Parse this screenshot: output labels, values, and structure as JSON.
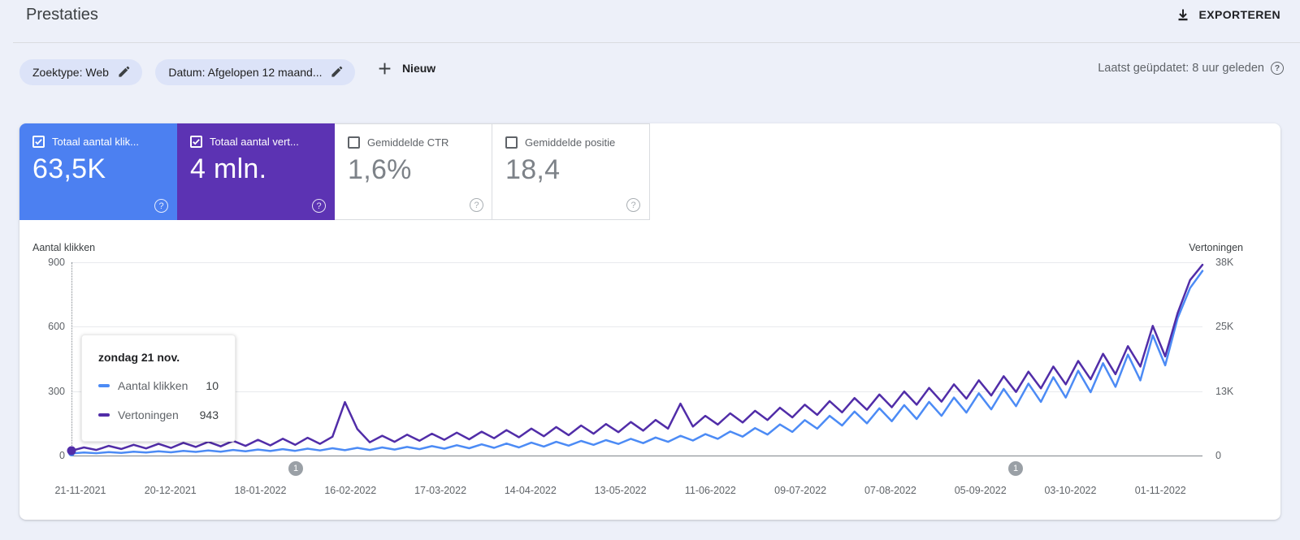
{
  "header": {
    "title": "Prestaties",
    "export_label": "EXPORTEREN"
  },
  "filters": {
    "search_type_chip": "Zoektype: Web",
    "date_chip": "Datum: Afgelopen 12 maand...",
    "new_label": "Nieuw",
    "last_updated": "Laatst geüpdatet: 8 uur geleden"
  },
  "metrics": [
    {
      "label": "Totaal aantal klik...",
      "value": "63,5K",
      "selected": true,
      "color": "#4c80f1"
    },
    {
      "label": "Totaal aantal vert...",
      "value": "4 mln.",
      "selected": true,
      "color": "#5c33b3"
    },
    {
      "label": "Gemiddelde CTR",
      "value": "1,6%",
      "selected": false
    },
    {
      "label": "Gemiddelde positie",
      "value": "18,4",
      "selected": false
    }
  ],
  "tooltip": {
    "title": "zondag 21 nov.",
    "rows": [
      {
        "label": "Aantal klikken",
        "value": "10",
        "color": "#4c8bf5"
      },
      {
        "label": "Vertoningen",
        "value": "943",
        "color": "#512da8"
      }
    ]
  },
  "chart_data": {
    "type": "line",
    "title": "Prestaties - Aantal klikken / Vertoningen (afgelopen 12 maanden)",
    "grid": true,
    "left_axis": {
      "label": "Aantal klikken",
      "ticks": [
        "900",
        "600",
        "300",
        "0"
      ],
      "max": 900
    },
    "right_axis": {
      "label": "Vertoningen",
      "ticks": [
        "38K",
        "25K",
        "13K",
        "0"
      ],
      "max": 38000
    },
    "x_labels": [
      "21-11-2021",
      "20-12-2021",
      "18-01-2022",
      "16-02-2022",
      "17-03-2022",
      "14-04-2022",
      "13-05-2022",
      "11-06-2022",
      "09-07-2022",
      "07-08-2022",
      "05-09-2022",
      "03-10-2022",
      "01-11-2022"
    ],
    "annotations": [
      {
        "label": "1",
        "x_index": 18
      },
      {
        "label": "1",
        "x_index": 76
      }
    ],
    "series": [
      {
        "name": "Aantal klikken",
        "axis": "left",
        "color": "#4c8bf5",
        "values": [
          10,
          14,
          11,
          16,
          12,
          18,
          14,
          20,
          15,
          22,
          17,
          24,
          18,
          26,
          20,
          28,
          21,
          30,
          22,
          32,
          24,
          34,
          25,
          36,
          26,
          38,
          28,
          40,
          30,
          44,
          32,
          48,
          34,
          52,
          36,
          56,
          38,
          60,
          42,
          64,
          46,
          68,
          50,
          72,
          54,
          78,
          58,
          84,
          64,
          92,
          70,
          100,
          78,
          112,
          88,
          128,
          98,
          145,
          110,
          165,
          125,
          185,
          140,
          205,
          150,
          220,
          160,
          235,
          170,
          250,
          185,
          270,
          200,
          290,
          215,
          310,
          230,
          335,
          250,
          365,
          270,
          395,
          295,
          430,
          320,
          470,
          350,
          560,
          420,
          640,
          780,
          860
        ]
      },
      {
        "name": "Vertoningen",
        "axis": "right",
        "color": "#512da8",
        "values": [
          943,
          1600,
          1100,
          1900,
          1300,
          2100,
          1400,
          2300,
          1500,
          2500,
          1700,
          2700,
          1800,
          2900,
          1900,
          3100,
          2000,
          3300,
          2100,
          3500,
          2300,
          3700,
          10500,
          5200,
          2600,
          3900,
          2700,
          4100,
          2900,
          4300,
          3100,
          4500,
          3200,
          4700,
          3400,
          5000,
          3600,
          5300,
          3800,
          5600,
          4000,
          5900,
          4300,
          6200,
          4600,
          6600,
          4900,
          7000,
          5300,
          10200,
          5700,
          7800,
          6100,
          8300,
          6500,
          8800,
          7000,
          9400,
          7500,
          10000,
          8000,
          10700,
          8500,
          11300,
          9000,
          12000,
          9500,
          12600,
          10000,
          13300,
          10600,
          14000,
          11200,
          14800,
          11800,
          15600,
          12500,
          16500,
          13200,
          17500,
          14000,
          18600,
          15000,
          20000,
          16000,
          21500,
          17500,
          25500,
          19500,
          28000,
          34500,
          37500
        ]
      }
    ]
  }
}
